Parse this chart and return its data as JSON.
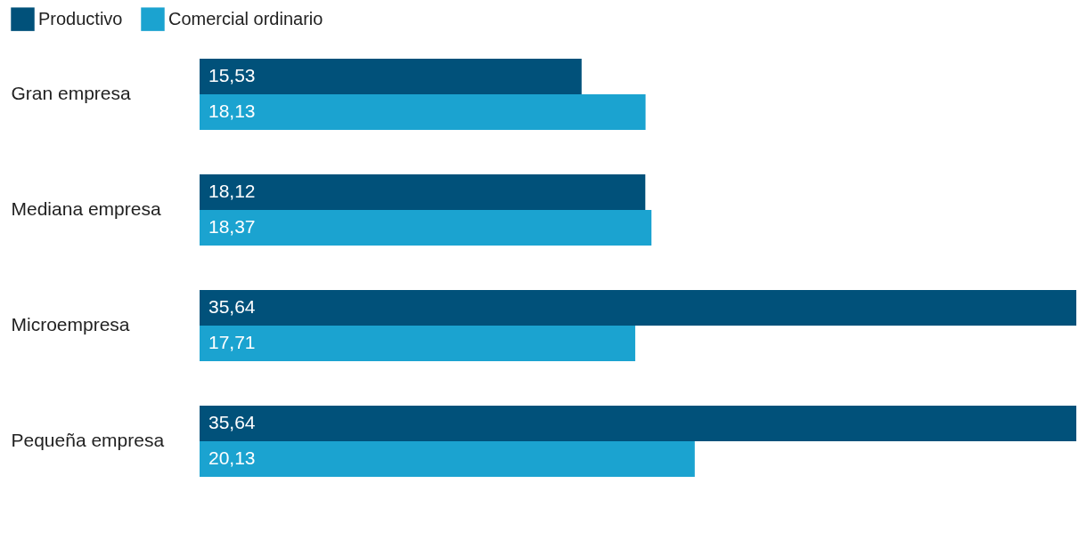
{
  "chart_data": {
    "type": "bar",
    "orientation": "horizontal",
    "categories": [
      "Gran empresa",
      "Mediana empresa",
      "Microempresa",
      "Pequeña empresa"
    ],
    "series": [
      {
        "name": "Productivo",
        "color": "#01517a",
        "values": [
          15.53,
          18.12,
          35.64,
          35.64
        ],
        "value_labels": [
          "15,53",
          "18,12",
          "35,64",
          "35,64"
        ]
      },
      {
        "name": "Comercial ordinario",
        "color": "#1ba3d0",
        "values": [
          18.13,
          18.37,
          17.71,
          20.13
        ],
        "value_labels": [
          "18,13",
          "18,37",
          "17,71",
          "20,13"
        ]
      }
    ],
    "xlim": [
      0,
      35.64
    ],
    "tick_labels": "y",
    "grid": false,
    "legend": "top left"
  }
}
